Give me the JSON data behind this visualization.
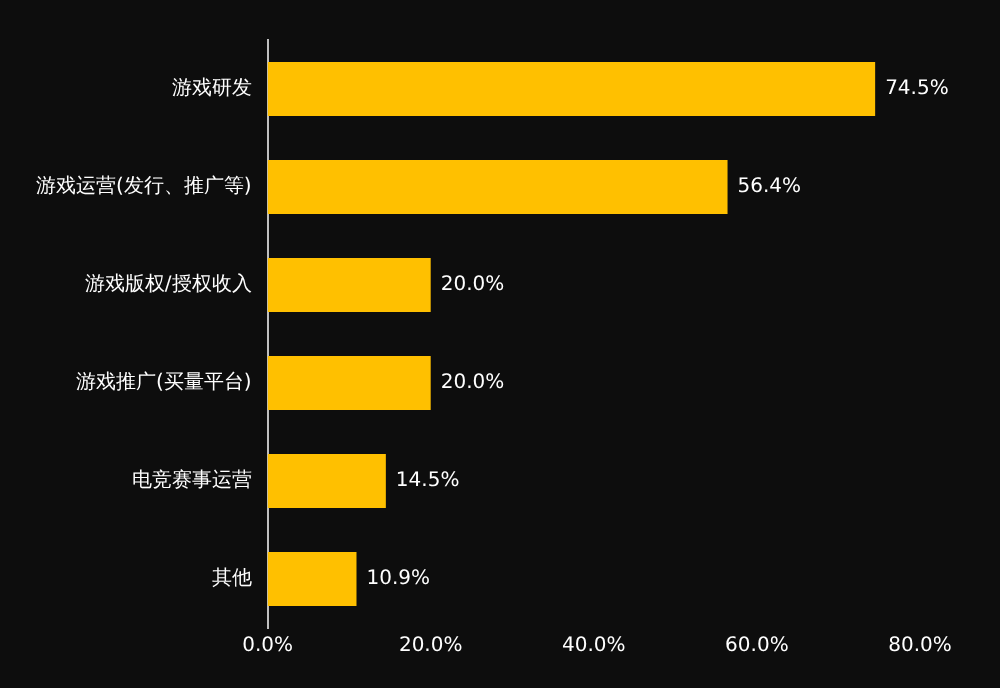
{
  "chart_data": {
    "type": "bar",
    "orientation": "horizontal",
    "categories": [
      "游戏研发",
      "游戏运营(发行、推广等)",
      "游戏版权/授权收入",
      "游戏推广(买量平台)",
      "电竞赛事运营",
      "其他"
    ],
    "values": [
      74.5,
      56.4,
      20.0,
      20.0,
      14.5,
      10.9
    ],
    "value_labels": [
      "74.5%",
      "56.4%",
      "20.0%",
      "20.0%",
      "14.5%",
      "10.9%"
    ],
    "color": "#ffc000",
    "xlim": [
      0,
      80
    ],
    "xticks": [
      {
        "value": 0,
        "label": "0.0%"
      },
      {
        "value": 20,
        "label": "20.0%"
      },
      {
        "value": 40,
        "label": "40.0%"
      },
      {
        "value": 60,
        "label": "60.0%"
      },
      {
        "value": 80,
        "label": "80.0%"
      }
    ],
    "grid": false,
    "legend": false
  }
}
